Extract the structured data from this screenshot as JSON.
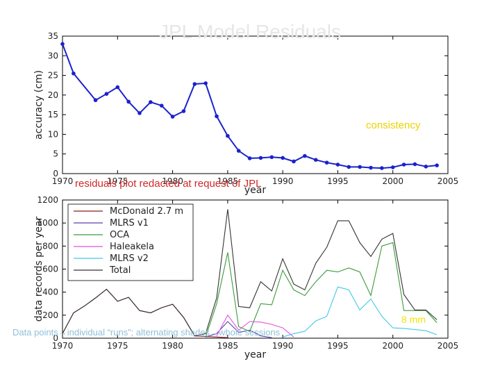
{
  "slide": {
    "title": "JPL Model Residuals",
    "consistency": "consistency",
    "redacted": "residuals plot redacted at request of JPL",
    "mm": "8 mm",
    "caption": "Data points→individual “runs”; alternating shades→whole sessions"
  },
  "chart_data": [
    {
      "type": "line",
      "xlabel": "year",
      "ylabel": "accuracy (cm)",
      "xlim": [
        1970,
        2005
      ],
      "ylim": [
        0,
        35
      ],
      "xticks": [
        1970,
        1975,
        1980,
        1985,
        1990,
        1995,
        2000,
        2005
      ],
      "yticks": [
        0,
        5,
        10,
        15,
        20,
        25,
        30,
        35
      ],
      "grid": false,
      "series": [
        {
          "color": "#1a22cc",
          "x": [
            1970,
            1971,
            1973,
            1974,
            1975,
            1976,
            1977,
            1978,
            1979,
            1980,
            1981,
            1982,
            1983,
            1984,
            1985,
            1986,
            1987,
            1988,
            1989,
            1990,
            1991,
            1992,
            1993,
            1994,
            1995,
            1996,
            1997,
            1998,
            1999,
            2000,
            2001,
            2002,
            2003,
            2004
          ],
          "y": [
            33,
            25.5,
            18.7,
            20.3,
            22,
            18.3,
            15.4,
            18.2,
            17.3,
            14.5,
            15.9,
            22.8,
            23,
            14.6,
            9.6,
            5.8,
            3.9,
            4,
            4.2,
            4,
            3.1,
            4.5,
            3.5,
            2.8,
            2.3,
            1.7,
            1.7,
            1.5,
            1.4,
            1.6,
            2.3,
            2.4,
            1.8,
            2.1
          ]
        }
      ]
    },
    {
      "type": "line",
      "xlabel": "year",
      "ylabel": "data records per year",
      "xlim": [
        1970,
        2005
      ],
      "ylim": [
        0,
        1200
      ],
      "xticks": [
        1970,
        1975,
        1980,
        1985,
        1990,
        1995,
        2000,
        2005
      ],
      "yticks": [
        0,
        200,
        400,
        600,
        800,
        1000,
        1200
      ],
      "legend": "top-left",
      "series": [
        {
          "name": "McDonald 2.7 m",
          "color": "#8b1a1a",
          "x": [
            1970,
            1971,
            1972,
            1973,
            1974,
            1975,
            1976,
            1977,
            1978,
            1979,
            1980,
            1981,
            1982,
            1983,
            1984,
            1985
          ],
          "y": [
            40,
            220,
            280,
            350,
            425,
            320,
            355,
            240,
            220,
            265,
            295,
            180,
            20,
            15,
            10,
            5
          ]
        },
        {
          "name": "MLRS v1",
          "color": "#5b3fb0",
          "x": [
            1983,
            1984,
            1985,
            1986,
            1987,
            1988,
            1989
          ],
          "y": [
            10,
            40,
            145,
            50,
            70,
            20,
            5
          ]
        },
        {
          "name": "OCA",
          "color": "#3a9a3a",
          "x": [
            1983,
            1984,
            1985,
            1986,
            1987,
            1988,
            1989,
            1990,
            1991,
            1992,
            1993,
            1994,
            1995,
            1996,
            1997,
            1998,
            1999,
            2000,
            2001,
            2002,
            2003,
            2004
          ],
          "y": [
            10,
            300,
            745,
            100,
            60,
            300,
            290,
            590,
            420,
            370,
            490,
            590,
            575,
            610,
            575,
            370,
            800,
            830,
            240,
            240,
            240,
            135
          ]
        },
        {
          "name": "Haleakela",
          "color": "#e050e0",
          "x": [
            1984,
            1985,
            1986,
            1987,
            1988,
            1989,
            1990,
            1991
          ],
          "y": [
            20,
            200,
            70,
            145,
            140,
            120,
            90,
            10
          ]
        },
        {
          "name": "MLRS v2",
          "color": "#40c8e8",
          "x": [
            1990,
            1991,
            1992,
            1993,
            1994,
            1995,
            1996,
            1997,
            1998,
            1999,
            2000,
            2001,
            2002,
            2003,
            2004
          ],
          "y": [
            10,
            40,
            60,
            150,
            190,
            445,
            420,
            245,
            340,
            190,
            90,
            85,
            75,
            65,
            30
          ]
        },
        {
          "name": "Total",
          "color": "#333333",
          "x": [
            1970,
            1971,
            1972,
            1973,
            1974,
            1975,
            1976,
            1977,
            1978,
            1979,
            1980,
            1981,
            1982,
            1983,
            1984,
            1985,
            1986,
            1987,
            1988,
            1989,
            1990,
            1991,
            1992,
            1993,
            1994,
            1995,
            1996,
            1997,
            1998,
            1999,
            2000,
            2001,
            2002,
            2003,
            2004
          ],
          "y": [
            40,
            220,
            280,
            350,
            425,
            320,
            355,
            240,
            220,
            265,
            295,
            180,
            20,
            40,
            350,
            1120,
            275,
            265,
            490,
            410,
            690,
            470,
            420,
            650,
            790,
            1020,
            1020,
            830,
            710,
            860,
            910,
            380,
            245,
            245,
            160
          ]
        }
      ]
    }
  ]
}
